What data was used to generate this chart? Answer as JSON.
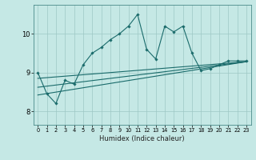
{
  "xlabel": "Humidex (Indice chaleur)",
  "ylabel": "",
  "xlim": [
    -0.5,
    23.5
  ],
  "ylim": [
    7.65,
    10.75
  ],
  "yticks": [
    8,
    9,
    10
  ],
  "xticks": [
    0,
    1,
    2,
    3,
    4,
    5,
    6,
    7,
    8,
    9,
    10,
    11,
    12,
    13,
    14,
    15,
    16,
    17,
    18,
    19,
    20,
    21,
    22,
    23
  ],
  "bg_color": "#c5e8e5",
  "grid_color": "#9dc8c4",
  "line_color": "#1a6b6b",
  "line1_x": [
    0,
    1,
    2,
    3,
    4,
    5,
    6,
    7,
    8,
    9,
    10,
    11,
    12,
    13,
    14,
    15,
    16,
    17,
    18,
    19,
    20,
    21,
    22,
    23
  ],
  "line1_y": [
    9.0,
    8.45,
    8.2,
    8.8,
    8.7,
    9.2,
    9.5,
    9.65,
    9.85,
    10.0,
    10.2,
    10.5,
    9.6,
    9.35,
    10.2,
    10.05,
    10.2,
    9.5,
    9.05,
    9.1,
    9.2,
    9.3,
    9.3,
    9.3
  ],
  "line2_x": [
    0,
    23
  ],
  "line2_y": [
    8.85,
    9.28
  ],
  "line3_x": [
    0,
    23
  ],
  "line3_y": [
    8.62,
    9.28
  ],
  "line4_x": [
    0,
    23
  ],
  "line4_y": [
    8.42,
    9.28
  ]
}
